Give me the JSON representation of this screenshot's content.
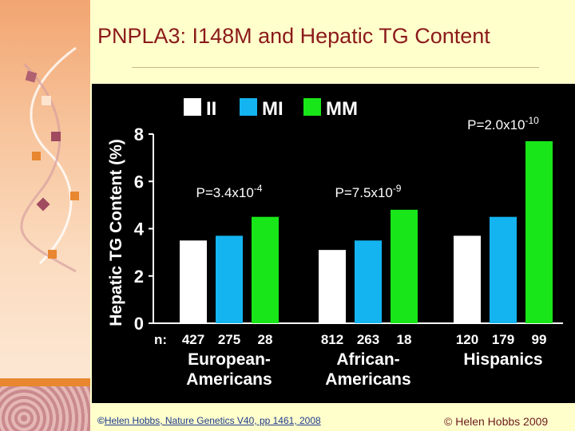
{
  "slide": {
    "title": "PNPLA3: I148M and Hepatic TG Content",
    "citation_symbol": "©",
    "citation": "Helen Hobbs, Nature Genetics V40, pp 1461, 2008",
    "copyright": "© Helen Hobbs 2009"
  },
  "chart_data": {
    "type": "bar",
    "ylabel": "Hepatic TG Content (%)",
    "ylim": [
      0,
      8
    ],
    "yticks": [
      "0",
      "2",
      "4",
      "6",
      "8"
    ],
    "n_label": "n:",
    "categories": [
      [
        "European-",
        "Americans"
      ],
      [
        "African-",
        "Americans"
      ],
      [
        "Hispanics"
      ]
    ],
    "series": [
      {
        "name": "II",
        "color": "#ffffff",
        "values": [
          3.5,
          3.1,
          3.7
        ],
        "n": [
          "427",
          "812",
          "120"
        ]
      },
      {
        "name": "MI",
        "color": "#14b4f0",
        "values": [
          3.7,
          3.5,
          4.5
        ],
        "n": [
          "275",
          "263",
          "179"
        ]
      },
      {
        "name": "MM",
        "color": "#19e619",
        "values": [
          4.5,
          4.8,
          7.7
        ],
        "n": [
          "28",
          "18",
          "99"
        ]
      }
    ],
    "p_values": [
      {
        "base": "P=3.4x10",
        "exp": "-4"
      },
      {
        "base": "P=7.5x10",
        "exp": "-9"
      },
      {
        "base": "P=2.0x10",
        "exp": "-10"
      }
    ],
    "legend": "top",
    "grid": false
  }
}
